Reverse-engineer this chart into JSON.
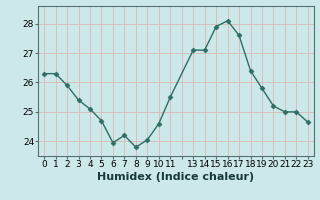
{
  "x": [
    0,
    1,
    2,
    3,
    4,
    5,
    6,
    7,
    8,
    9,
    10,
    11,
    13,
    14,
    15,
    16,
    17,
    18,
    19,
    20,
    21,
    22,
    23
  ],
  "y": [
    26.3,
    26.3,
    25.9,
    25.4,
    25.1,
    24.7,
    23.95,
    24.2,
    23.8,
    24.05,
    24.6,
    25.5,
    27.1,
    27.1,
    27.9,
    28.1,
    27.6,
    26.4,
    25.8,
    25.2,
    25.0,
    25.0,
    24.65
  ],
  "line_color": "#2e6e63",
  "marker": "D",
  "marker_size": 2.5,
  "bg_color": "#cce8e8",
  "grid_color": "#d8b8b8",
  "xlabel": "Humidex (Indice chaleur)",
  "ylim": [
    23.5,
    28.6
  ],
  "yticks": [
    24,
    25,
    26,
    27,
    28
  ],
  "xlim": [
    -0.5,
    23.5
  ],
  "axis_fontsize": 7.5,
  "tick_fontsize": 6.5,
  "xlabel_fontsize": 8.0,
  "linewidth": 1.0
}
